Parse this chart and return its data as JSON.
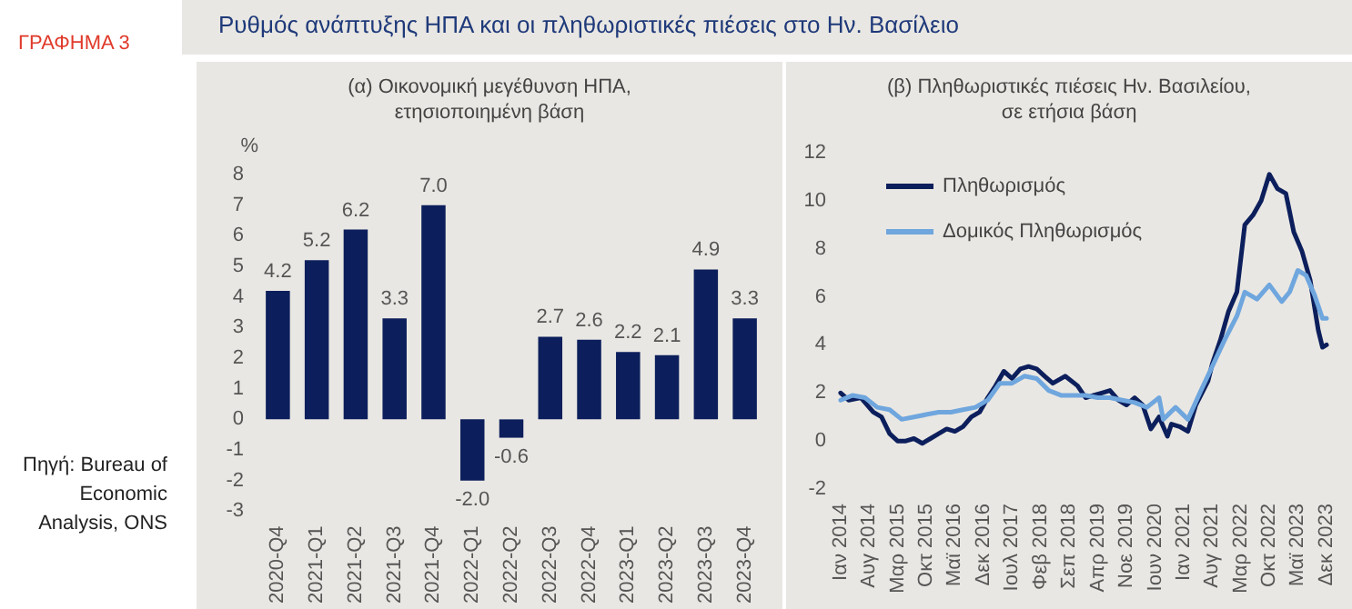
{
  "chart_data": [
    {
      "type": "bar",
      "title": "(α) Οικονομική μεγέθυνση ΗΠΑ,\nετησιοποιημένη βάση",
      "ylabel": "%",
      "annotations": [
        "ΓΡΑΦΗΜΑ 3",
        "Ρυθμός ανάπτυξης ΗΠΑ και οι πληθωριστικές πιέσεις στο Ην. Βασίλειο",
        "Πηγή: Bureau of Economic Analysis, ONS"
      ],
      "categories": [
        "2020-Q4",
        "2021-Q1",
        "2021-Q2",
        "2021-Q3",
        "2021-Q4",
        "2022-Q1",
        "2022-Q2",
        "2022-Q3",
        "2022-Q4",
        "2023-Q1",
        "2023-Q2",
        "2023-Q3",
        "2023-Q4"
      ],
      "values": [
        4.2,
        5.2,
        6.2,
        3.3,
        7.0,
        -2.0,
        -0.6,
        2.7,
        2.6,
        2.2,
        2.1,
        4.9,
        3.3
      ],
      "value_labels": [
        "4.2",
        "5.2",
        "6.2",
        "3.3",
        "7.0",
        "-2.0",
        "-0.6",
        "2.7",
        "2.6",
        "2.2",
        "2.1",
        "4.9",
        "3.3"
      ],
      "color": "#0c1f5c",
      "ylim": [
        -3,
        8
      ],
      "yticks": [
        -3,
        -2,
        -1,
        0,
        1,
        2,
        3,
        4,
        5,
        6,
        7,
        8
      ]
    },
    {
      "type": "line",
      "title": "(β) Πληθωριστικές πιέσεις Ην. Βασιλείου,\nσε ετήσια βάση",
      "legend": "top left",
      "xlim": [
        "2014-01",
        "2023-12"
      ],
      "xticks": [
        {
          "value": "2014-01",
          "label": "Ιαν 2014"
        },
        {
          "value": "2014-08",
          "label": "Αυγ 2014"
        },
        {
          "value": "2015-03",
          "label": "Μαρ 2015"
        },
        {
          "value": "2015-10",
          "label": "Οκτ 2015"
        },
        {
          "value": "2016-05",
          "label": "Μαϊ 2016"
        },
        {
          "value": "2016-12",
          "label": "Δεκ 2016"
        },
        {
          "value": "2017-07",
          "label": "Ιουλ 2017"
        },
        {
          "value": "2018-02",
          "label": "Φεβ 2018"
        },
        {
          "value": "2018-09",
          "label": "Σεπ 2018"
        },
        {
          "value": "2019-04",
          "label": "Απρ 2019"
        },
        {
          "value": "2019-11",
          "label": "Νοε 2019"
        },
        {
          "value": "2020-06",
          "label": "Ιουν 2020"
        },
        {
          "value": "2021-01",
          "label": "Ιαν 2021"
        },
        {
          "value": "2021-08",
          "label": "Αυγ 2021"
        },
        {
          "value": "2022-03",
          "label": "Μαρ 2022"
        },
        {
          "value": "2022-10",
          "label": "Οκτ 2022"
        },
        {
          "value": "2023-05",
          "label": "Μαϊ 2023"
        },
        {
          "value": "2023-12",
          "label": "Δεκ 2023"
        }
      ],
      "ylim": [
        -2,
        12
      ],
      "yticks": [
        -2,
        0,
        2,
        4,
        6,
        8,
        10,
        12
      ],
      "series": [
        {
          "name": "Πληθωρισμός",
          "color": "#0c1f5c",
          "x": [
            "2014-01",
            "2014-03",
            "2014-06",
            "2014-09",
            "2014-11",
            "2015-01",
            "2015-03",
            "2015-05",
            "2015-07",
            "2015-09",
            "2015-11",
            "2016-01",
            "2016-03",
            "2016-05",
            "2016-07",
            "2016-09",
            "2016-11",
            "2017-01",
            "2017-03",
            "2017-05",
            "2017-07",
            "2017-09",
            "2017-11",
            "2018-01",
            "2018-03",
            "2018-05",
            "2018-08",
            "2018-11",
            "2019-01",
            "2019-03",
            "2019-05",
            "2019-07",
            "2019-09",
            "2019-11",
            "2020-01",
            "2020-03",
            "2020-05",
            "2020-07",
            "2020-09",
            "2020-10",
            "2020-12",
            "2021-02",
            "2021-04",
            "2021-07",
            "2021-08",
            "2021-10",
            "2021-12",
            "2022-02",
            "2022-04",
            "2022-06",
            "2022-08",
            "2022-10",
            "2022-12",
            "2023-02",
            "2023-04",
            "2023-06",
            "2023-08",
            "2023-10",
            "2023-11",
            "2023-12"
          ],
          "values": [
            2.0,
            1.7,
            1.8,
            1.2,
            1.0,
            0.3,
            0.0,
            0.0,
            0.1,
            -0.1,
            0.1,
            0.3,
            0.5,
            0.4,
            0.6,
            1.0,
            1.2,
            1.8,
            2.3,
            2.9,
            2.6,
            3.0,
            3.1,
            3.0,
            2.7,
            2.4,
            2.7,
            2.3,
            1.8,
            1.9,
            2.0,
            2.1,
            1.7,
            1.5,
            1.8,
            1.5,
            0.5,
            1.0,
            0.2,
            0.7,
            0.6,
            0.4,
            1.5,
            2.5,
            3.2,
            4.2,
            5.4,
            6.2,
            9.0,
            9.4,
            10.0,
            11.1,
            10.5,
            10.3,
            8.7,
            7.9,
            6.7,
            4.6,
            3.9,
            4.0
          ]
        },
        {
          "name": "Δομικός Πληθωρισμός",
          "color": "#6fa6de",
          "x": [
            "2014-01",
            "2014-04",
            "2014-07",
            "2014-10",
            "2015-01",
            "2015-04",
            "2015-07",
            "2015-10",
            "2016-01",
            "2016-04",
            "2016-07",
            "2016-10",
            "2017-01",
            "2017-04",
            "2017-07",
            "2017-10",
            "2018-01",
            "2018-04",
            "2018-07",
            "2018-10",
            "2019-01",
            "2019-04",
            "2019-07",
            "2019-10",
            "2020-01",
            "2020-04",
            "2020-07",
            "2020-08",
            "2020-11",
            "2021-02",
            "2021-05",
            "2021-08",
            "2021-11",
            "2022-02",
            "2022-04",
            "2022-07",
            "2022-10",
            "2023-01",
            "2023-03",
            "2023-05",
            "2023-07",
            "2023-09",
            "2023-11",
            "2023-12"
          ],
          "values": [
            1.7,
            1.9,
            1.8,
            1.4,
            1.3,
            0.9,
            1.0,
            1.1,
            1.2,
            1.2,
            1.3,
            1.4,
            1.7,
            2.4,
            2.4,
            2.7,
            2.6,
            2.1,
            1.9,
            1.9,
            1.9,
            1.8,
            1.8,
            1.7,
            1.6,
            1.4,
            1.8,
            0.9,
            1.4,
            0.9,
            2.0,
            3.1,
            4.2,
            5.2,
            6.2,
            5.9,
            6.5,
            5.8,
            6.2,
            7.1,
            6.9,
            6.1,
            5.1,
            5.1
          ]
        }
      ]
    }
  ]
}
